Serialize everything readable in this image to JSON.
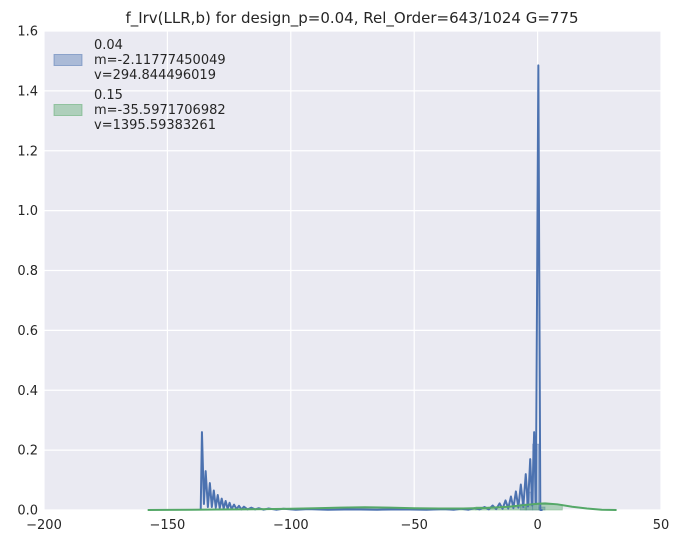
{
  "chart_data": {
    "type": "line",
    "title": "f_Irv(LLR,b) for design_p=0.04, Rel_Order=643/1024 G=775",
    "xlabel": "",
    "ylabel": "",
    "xlim": [
      -200,
      50
    ],
    "ylim": [
      0,
      1.6
    ],
    "xticks": [
      -200,
      -150,
      -100,
      -50,
      0,
      50
    ],
    "xtick_labels": [
      "−200",
      "−150",
      "−100",
      "−50",
      "0",
      "50"
    ],
    "yticks": [
      0.0,
      0.2,
      0.4,
      0.6,
      0.8,
      1.0,
      1.2,
      1.4,
      1.6
    ],
    "ytick_labels": [
      "0.0",
      "0.2",
      "0.4",
      "0.6",
      "0.8",
      "1.0",
      "1.2",
      "1.4",
      "1.6"
    ],
    "grid": true,
    "legend_position": "top-left",
    "series": [
      {
        "name": "0.04",
        "legend_lines": [
          "0.04",
          " m=-2.11777450049",
          " v=294.844496019"
        ],
        "color": "#4c72b0",
        "kde": [
          [
            -136.5,
            0
          ],
          [
            -136,
            0.26
          ],
          [
            -135.2,
            0.02
          ],
          [
            -134.5,
            0.13
          ],
          [
            -133.6,
            0.01
          ],
          [
            -132.8,
            0.09
          ],
          [
            -132,
            0.01
          ],
          [
            -131.2,
            0.065
          ],
          [
            -130.4,
            0.008
          ],
          [
            -129.6,
            0.05
          ],
          [
            -128.8,
            0.006
          ],
          [
            -128,
            0.038
          ],
          [
            -127.2,
            0.005
          ],
          [
            -126.4,
            0.03
          ],
          [
            -125.6,
            0.004
          ],
          [
            -124.8,
            0.024
          ],
          [
            -124,
            0.003
          ],
          [
            -123,
            0.018
          ],
          [
            -122,
            0.003
          ],
          [
            -121,
            0.014
          ],
          [
            -120,
            0.002
          ],
          [
            -119,
            0.011
          ],
          [
            -117.5,
            0.002
          ],
          [
            -116,
            0.008
          ],
          [
            -114.5,
            0.002
          ],
          [
            -113,
            0.006
          ],
          [
            -111,
            0.001
          ],
          [
            -109,
            0.005
          ],
          [
            -106,
            0.001
          ],
          [
            -103,
            0.004
          ],
          [
            -98,
            0.001
          ],
          [
            -93,
            0.003
          ],
          [
            -85,
            0.001
          ],
          [
            -75,
            0.002
          ],
          [
            -65,
            0.001
          ],
          [
            -55,
            0.002
          ],
          [
            -45,
            0.001
          ],
          [
            -38,
            0.003
          ],
          [
            -34,
            0.001
          ],
          [
            -31,
            0.004
          ],
          [
            -28,
            0.001
          ],
          [
            -25.5,
            0.006
          ],
          [
            -23.5,
            0.002
          ],
          [
            -21.5,
            0.01
          ],
          [
            -19.8,
            0.002
          ],
          [
            -18.2,
            0.015
          ],
          [
            -16.8,
            0.003
          ],
          [
            -15.4,
            0.022
          ],
          [
            -14.2,
            0.004
          ],
          [
            -13,
            0.032
          ],
          [
            -11.9,
            0.005
          ],
          [
            -10.8,
            0.045
          ],
          [
            -9.8,
            0.006
          ],
          [
            -8.8,
            0.062
          ],
          [
            -7.8,
            0.008
          ],
          [
            -6.8,
            0.085
          ],
          [
            -5.8,
            0.01
          ],
          [
            -4.8,
            0.12
          ],
          [
            -3.9,
            0.012
          ],
          [
            -3,
            0.17
          ],
          [
            -2.2,
            0.015
          ],
          [
            -1.4,
            0.26
          ],
          [
            -0.7,
            0.02
          ],
          [
            0.3,
            1.485
          ],
          [
            1.1,
            0
          ],
          [
            2,
            0
          ]
        ],
        "bars": [
          {
            "x0": -7,
            "x1": -4.5,
            "h": 0.02
          },
          {
            "x0": -4.5,
            "x1": -2,
            "h": 0.06
          },
          {
            "x0": -2,
            "x1": 0.5,
            "h": 0.22
          },
          {
            "x0": 0.5,
            "x1": 3,
            "h": 0.01
          }
        ]
      },
      {
        "name": "0.15",
        "legend_lines": [
          "0.15",
          " m=-35.5971706982",
          " v=1395.59383261"
        ],
        "color": "#55a868",
        "kde": [
          [
            -158,
            0
          ],
          [
            -150,
            0.0003
          ],
          [
            -140,
            0.001
          ],
          [
            -130,
            0.0015
          ],
          [
            -120,
            0.002
          ],
          [
            -110,
            0.003
          ],
          [
            -100,
            0.004
          ],
          [
            -90,
            0.006
          ],
          [
            -80,
            0.008
          ],
          [
            -70,
            0.009
          ],
          [
            -60,
            0.008
          ],
          [
            -50,
            0.006
          ],
          [
            -40,
            0.005
          ],
          [
            -30,
            0.005
          ],
          [
            -20,
            0.007
          ],
          [
            -12,
            0.011
          ],
          [
            -6,
            0.016
          ],
          [
            0,
            0.021
          ],
          [
            3,
            0.022
          ],
          [
            8,
            0.019
          ],
          [
            14,
            0.011
          ],
          [
            20,
            0.005
          ],
          [
            26,
            0.001
          ],
          [
            32,
            0
          ]
        ],
        "bars": [
          {
            "x0": -85,
            "x1": -55,
            "h": 0.008
          },
          {
            "x0": -55,
            "x1": -25,
            "h": 0.005
          },
          {
            "x0": -25,
            "x1": -5,
            "h": 0.01
          },
          {
            "x0": -5,
            "x1": 10,
            "h": 0.018
          }
        ]
      }
    ]
  }
}
